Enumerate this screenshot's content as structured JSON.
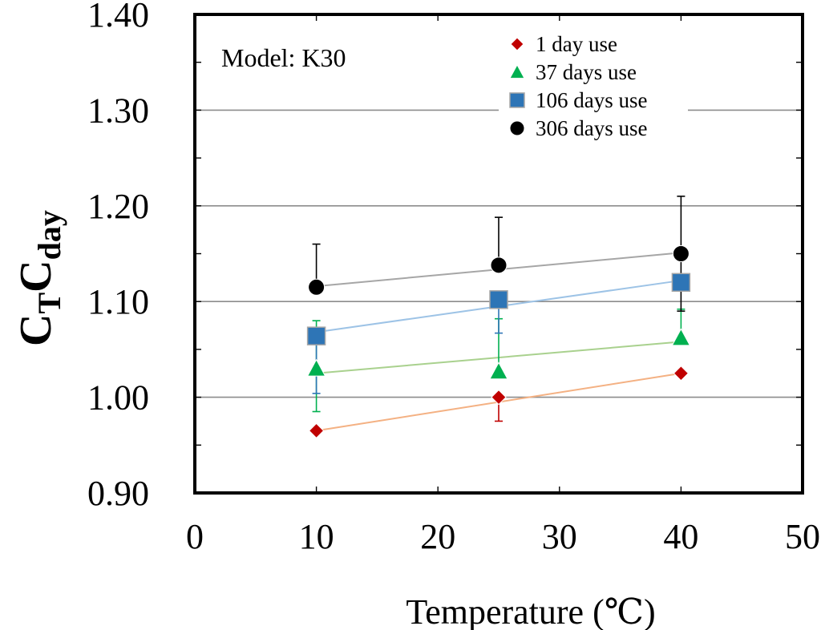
{
  "chart_data": {
    "type": "scatter",
    "title": "",
    "annotation": "Model: K30",
    "xlabel": "Temperature (℃)",
    "ylabel": {
      "main1": "C",
      "sub1": "T",
      "main2": "C",
      "sub2": "day"
    },
    "xlim": [
      0,
      50
    ],
    "ylim": [
      0.9,
      1.4
    ],
    "xticks": [
      "0",
      "10",
      "20",
      "30",
      "40",
      "50"
    ],
    "yticks": [
      "0.90",
      "1.00",
      "1.10",
      "1.20",
      "1.30",
      "1.40"
    ],
    "grid": true,
    "legend_position": "top-right",
    "series": [
      {
        "name": "1 day use",
        "marker": "diamond",
        "color": "#c00000",
        "trend_color": "#f4b183",
        "x": [
          10,
          25,
          40
        ],
        "y": [
          0.965,
          1.0,
          1.025
        ],
        "err_lo": [
          0.0,
          0.025,
          0.0
        ],
        "err_hi": [
          0.0,
          0.0,
          0.0
        ],
        "trend": [
          0.965,
          1.025
        ]
      },
      {
        "name": "37 days use",
        "marker": "triangle",
        "color": "#00b050",
        "trend_color": "#a9d18e",
        "x": [
          10,
          25,
          40
        ],
        "y": [
          1.03,
          1.027,
          1.062
        ],
        "err_lo": [
          0.045,
          0.0,
          0.0
        ],
        "err_hi": [
          0.05,
          0.055,
          0.03
        ],
        "trend": [
          1.025,
          1.058
        ]
      },
      {
        "name": "106 days use",
        "marker": "square",
        "color": "#2e75b6",
        "trend_color": "#9dc3e6",
        "x": [
          10,
          25,
          40
        ],
        "y": [
          1.064,
          1.102,
          1.12
        ],
        "err_lo": [
          0.06,
          0.035,
          0.0
        ],
        "err_hi": [
          0.0,
          0.0,
          0.0
        ],
        "trend": [
          1.068,
          1.122
        ]
      },
      {
        "name": "306 days use",
        "marker": "circle",
        "color": "#000000",
        "trend_color": "#a6a6a6",
        "x": [
          10,
          25,
          40
        ],
        "y": [
          1.115,
          1.138,
          1.15
        ],
        "err_lo": [
          0.0,
          0.0,
          0.06
        ],
        "err_hi": [
          0.045,
          0.05,
          0.06
        ],
        "trend": [
          1.116,
          1.151
        ]
      }
    ]
  }
}
